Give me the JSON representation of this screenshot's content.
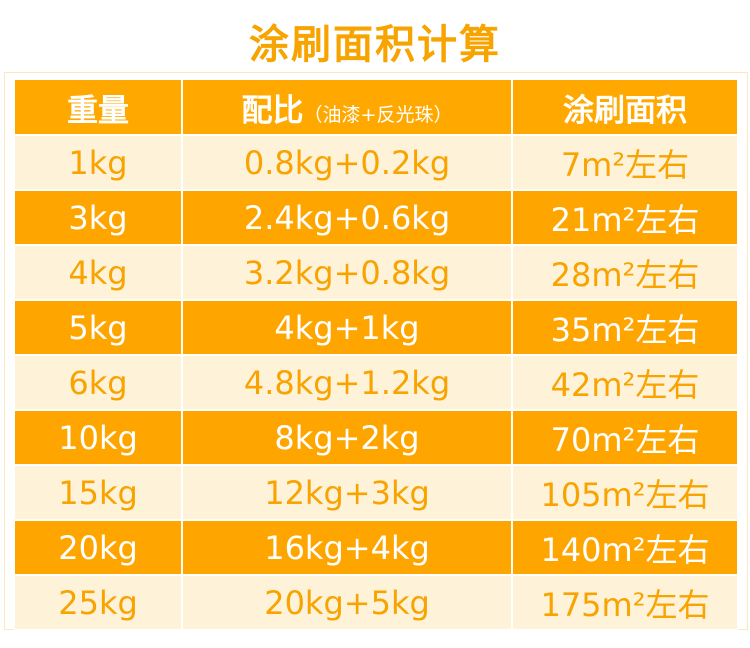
{
  "title": "涂刷面积计算",
  "headers": {
    "weight": "重量",
    "ratio": "配比",
    "ratio_note": "（油漆+反光珠）",
    "area": "涂刷面积"
  },
  "rows": [
    {
      "weight": "1kg",
      "ratio": "0.8kg+0.2kg",
      "area": "7m²左右"
    },
    {
      "weight": "3kg",
      "ratio": "2.4kg+0.6kg",
      "area": "21m²左右"
    },
    {
      "weight": "4kg",
      "ratio": "3.2kg+0.8kg",
      "area": "28m²左右"
    },
    {
      "weight": "5kg",
      "ratio": "4kg+1kg",
      "area": "35m²左右"
    },
    {
      "weight": "6kg",
      "ratio": "4.8kg+1.2kg",
      "area": "42m²左右"
    },
    {
      "weight": "10kg",
      "ratio": "8kg+2kg",
      "area": "70m²左右"
    },
    {
      "weight": "15kg",
      "ratio": "12kg+3kg",
      "area": "105m²左右"
    },
    {
      "weight": "20kg",
      "ratio": "16kg+4kg",
      "area": "140m²左右"
    },
    {
      "weight": "25kg",
      "ratio": "20kg+5kg",
      "area": "175m²左右"
    }
  ],
  "colors": {
    "dark_row": "#FFA500",
    "light_row": "#FEF3D8",
    "title": "#F7A400"
  }
}
